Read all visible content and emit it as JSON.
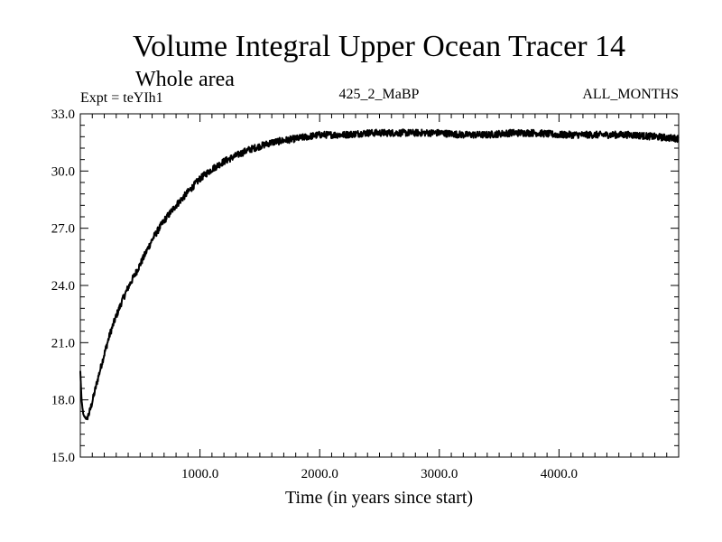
{
  "chart_data": {
    "type": "line",
    "title": "Volume Integral Upper Ocean Tracer 14",
    "subtitle": "Whole area",
    "expt_label": "Expt = teYIh1",
    "run_label": "425_2_MaBP",
    "months_label": "ALL_MONTHS",
    "xlabel": "Time (in years since start)",
    "ylabel": "",
    "xlim": [
      0,
      5000
    ],
    "ylim": [
      15.0,
      33.0
    ],
    "x_ticks": [
      1000,
      2000,
      3000,
      4000
    ],
    "x_tick_labels": [
      "1000.0",
      "2000.0",
      "3000.0",
      "4000.0"
    ],
    "y_ticks": [
      15,
      18,
      21,
      24,
      27,
      30,
      33
    ],
    "y_tick_labels": [
      "15.0",
      "18.0",
      "21.0",
      "24.0",
      "27.0",
      "30.0",
      "33.0"
    ],
    "series": [
      {
        "name": "Volume Integral Upper Ocean Tracer 14",
        "color": "#000000",
        "x": [
          0,
          10,
          25,
          50,
          75,
          100,
          150,
          200,
          250,
          300,
          350,
          400,
          450,
          500,
          600,
          700,
          800,
          900,
          1000,
          1100,
          1200,
          1300,
          1400,
          1500,
          1600,
          1700,
          1800,
          1900,
          2000,
          2200,
          2400,
          2600,
          2800,
          3000,
          3200,
          3400,
          3600,
          3800,
          4000,
          4200,
          4400,
          4600,
          4800,
          5000
        ],
        "values": [
          19.5,
          18.0,
          17.2,
          17.0,
          17.3,
          17.9,
          19.2,
          20.4,
          21.5,
          22.4,
          23.2,
          23.9,
          24.5,
          25.1,
          26.4,
          27.4,
          28.2,
          28.9,
          29.6,
          30.1,
          30.5,
          30.8,
          31.1,
          31.3,
          31.5,
          31.6,
          31.7,
          31.8,
          31.9,
          31.9,
          32.0,
          32.0,
          32.0,
          32.0,
          31.9,
          31.9,
          32.0,
          32.0,
          31.9,
          31.9,
          31.9,
          31.9,
          31.8,
          31.7
        ]
      }
    ]
  }
}
